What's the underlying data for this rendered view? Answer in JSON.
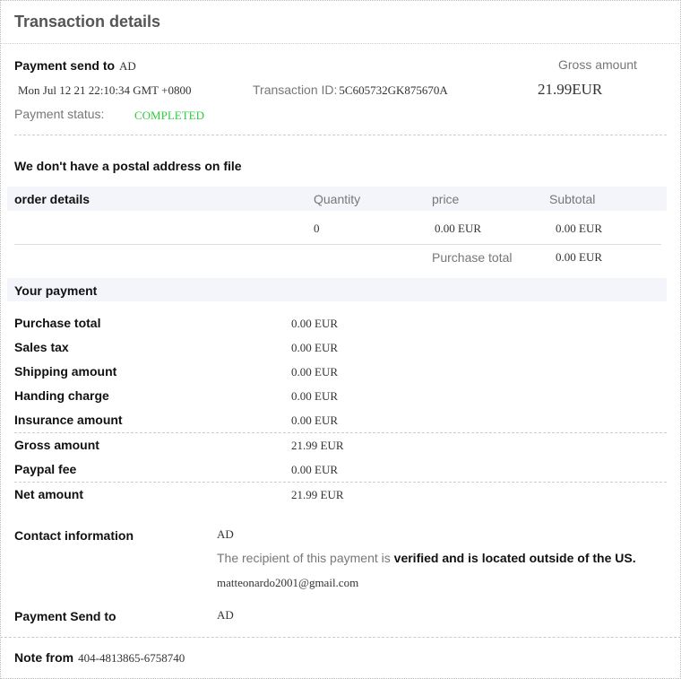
{
  "title": "Transaction details",
  "summary": {
    "payment_send_to_label": "Payment send to",
    "payment_send_to_value": "AD",
    "gross_amount_label": "Gross amount",
    "date": "Mon Jul 12 21 22:10:34 GMT +0800",
    "transaction_id_label": "Transaction ID:",
    "transaction_id": "5C605732GK875670A",
    "gross_amount_value": "21.99EUR",
    "payment_status_label": "Payment status:",
    "payment_status": "COMPLETED",
    "status_color": "#2ecc40"
  },
  "postal": "We don't have a postal address on file",
  "order": {
    "header": [
      "order details",
      "Quantity",
      "price",
      "Subtotal"
    ],
    "row": {
      "quantity": "0",
      "price": "0.00 EUR",
      "subtotal": "0.00 EUR"
    },
    "purchase_total_label": "Purchase total",
    "purchase_total": "0.00 EUR"
  },
  "your_payment": {
    "title": "Your payment",
    "rows": [
      {
        "label": "Purchase total",
        "value": "0.00 EUR"
      },
      {
        "label": "Sales tax",
        "value": "0.00 EUR"
      },
      {
        "label": "Shipping amount",
        "value": "0.00 EUR"
      },
      {
        "label": "Handing charge",
        "value": "0.00 EUR"
      },
      {
        "label": "Insurance amount",
        "value": "0.00 EUR"
      },
      {
        "label": "Gross amount",
        "value": "21.99 EUR"
      },
      {
        "label": "Paypal fee",
        "value": "0.00 EUR"
      },
      {
        "label": "Net amount",
        "value": "21.99 EUR"
      }
    ]
  },
  "contact": {
    "label": "Contact information",
    "name": "AD",
    "recipient_prefix": "The recipient of this payment is ",
    "recipient_bold": "verified and is located outside of the US.",
    "email": "matteonardo2001@gmail.com",
    "send_to_label": "Payment Send to",
    "send_to_value": "AD"
  },
  "note": {
    "label": "Note from",
    "value": "404-4813865-6758740"
  }
}
